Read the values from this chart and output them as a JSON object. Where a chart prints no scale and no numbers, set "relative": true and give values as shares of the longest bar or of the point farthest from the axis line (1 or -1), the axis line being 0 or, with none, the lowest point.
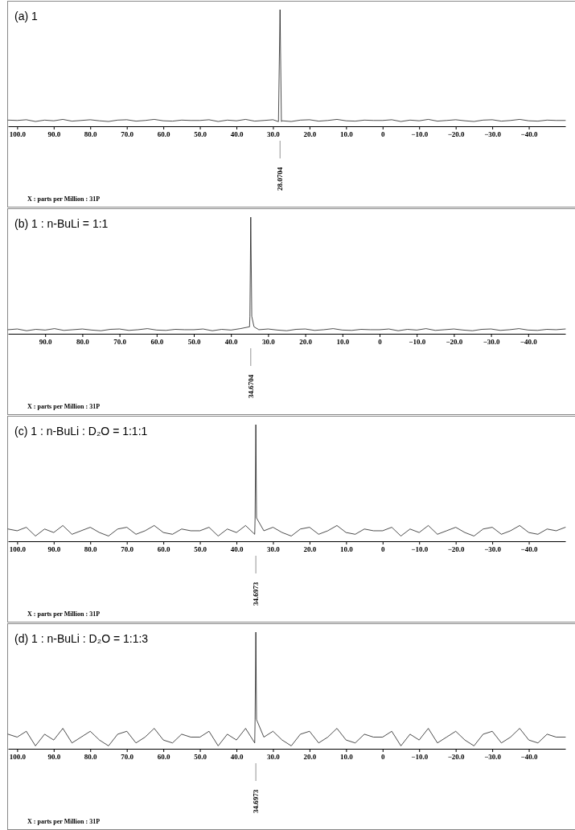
{
  "chart_data": [
    {
      "type": "line",
      "title": "(a) 1",
      "xlabel": "X : parts per Million : 31P",
      "relative": true,
      "xlim": [
        102.5,
        -50
      ],
      "xticks": [
        {
          "value": 100,
          "label": "100.0"
        },
        {
          "value": 90,
          "label": "90.0"
        },
        {
          "value": 80,
          "label": "80.0"
        },
        {
          "value": 70,
          "label": "70.0"
        },
        {
          "value": 60,
          "label": "60.0"
        },
        {
          "value": 50,
          "label": "50.0"
        },
        {
          "value": 40,
          "label": "40.0"
        },
        {
          "value": 30,
          "label": "30.0"
        },
        {
          "value": 20,
          "label": "20.0"
        },
        {
          "value": 10,
          "label": "10.0"
        },
        {
          "value": 0,
          "label": "0"
        },
        {
          "value": -10,
          "label": "−10.0"
        },
        {
          "value": -20,
          "label": "−20.0"
        },
        {
          "value": -30,
          "label": "−30.0"
        },
        {
          "value": -40,
          "label": "−40.0"
        }
      ],
      "annotations": [
        {
          "text": "28.0704",
          "x": 28.0704
        }
      ],
      "series": [
        {
          "color": "#000000",
          "x": [
            102.5,
            100,
            97.5,
            95,
            92.5,
            90,
            87.5,
            85,
            82.5,
            80,
            77.5,
            75,
            72.5,
            70,
            67.5,
            65,
            62.5,
            60,
            57.5,
            55,
            52.5,
            50,
            47.5,
            45,
            42.5,
            40,
            37.5,
            35,
            32.5,
            30,
            28.5,
            28.0704,
            27.7,
            27.5,
            25,
            22.5,
            20,
            17.5,
            15,
            12.5,
            10,
            7.5,
            5,
            2.5,
            0,
            -2.5,
            -5,
            -7.5,
            -10,
            -12.5,
            -15,
            -17.5,
            -20,
            -22.5,
            -25,
            -27.5,
            -30,
            -32.5,
            -35,
            -37.5,
            -40,
            -42.5,
            -45,
            -47.5,
            -50
          ],
          "values": [
            0.053,
            0.05,
            0.056,
            0.041,
            0.053,
            0.047,
            0.059,
            0.044,
            0.05,
            0.056,
            0.047,
            0.041,
            0.053,
            0.056,
            0.044,
            0.05,
            0.059,
            0.047,
            0.044,
            0.053,
            0.05,
            0.05,
            0.056,
            0.041,
            0.053,
            0.047,
            0.059,
            0.044,
            0.05,
            0.056,
            0.04,
            1,
            0.04,
            0.047,
            0.041,
            0.053,
            0.056,
            0.044,
            0.05,
            0.059,
            0.047,
            0.044,
            0.053,
            0.05,
            0.05,
            0.056,
            0.041,
            0.053,
            0.047,
            0.059,
            0.044,
            0.05,
            0.056,
            0.047,
            0.041,
            0.053,
            0.056,
            0.044,
            0.05,
            0.059,
            0.047,
            0.044,
            0.053,
            0.05,
            0.05
          ]
        }
      ]
    },
    {
      "type": "line",
      "title": "(b) 1 : n-BuLi = 1:1",
      "xlabel": "X : parts per Million : 31P",
      "relative": true,
      "xlim": [
        100,
        -50
      ],
      "xticks": [
        {
          "value": 90,
          "label": "90.0"
        },
        {
          "value": 80,
          "label": "80.0"
        },
        {
          "value": 70,
          "label": "70.0"
        },
        {
          "value": 60,
          "label": "60.0"
        },
        {
          "value": 50,
          "label": "50.0"
        },
        {
          "value": 40,
          "label": "40.0"
        },
        {
          "value": 30,
          "label": "30.0"
        },
        {
          "value": 20,
          "label": "20.0"
        },
        {
          "value": 10,
          "label": "10.0"
        },
        {
          "value": 0,
          "label": "0"
        },
        {
          "value": -10,
          "label": "−10.0"
        },
        {
          "value": -20,
          "label": "−20.0"
        },
        {
          "value": -30,
          "label": "−30.0"
        },
        {
          "value": -40,
          "label": "−40.0"
        }
      ],
      "annotations": [
        {
          "text": "34.6704",
          "x": 34.6704
        }
      ],
      "series": [
        {
          "color": "#000000",
          "x": [
            100,
            97.5,
            95,
            92.5,
            90,
            87.5,
            85,
            82.5,
            80,
            77.5,
            75,
            72.5,
            70,
            67.5,
            65,
            62.5,
            60,
            57.5,
            55,
            52.5,
            50,
            47.5,
            45,
            42.5,
            40,
            37.5,
            35,
            34.9,
            34.6704,
            34.4,
            33.8,
            32.5,
            30,
            27.5,
            25,
            22.5,
            20,
            17.5,
            15,
            12.5,
            10,
            7.5,
            5,
            2.5,
            0,
            -2.5,
            -5,
            -7.5,
            -10,
            -12.5,
            -15,
            -17.5,
            -20,
            -22.5,
            -25,
            -27.5,
            -30,
            -32.5,
            -35,
            -37.5,
            -40,
            -42.5,
            -45,
            -47.5,
            -50
          ],
          "values": [
            0.035,
            0.041,
            0.026,
            0.038,
            0.032,
            0.044,
            0.029,
            0.035,
            0.041,
            0.032,
            0.026,
            0.038,
            0.041,
            0.029,
            0.035,
            0.044,
            0.032,
            0.029,
            0.038,
            0.035,
            0.035,
            0.041,
            0.026,
            0.038,
            0.032,
            0.044,
            0.06,
            0.15,
            1,
            0.15,
            0.06,
            0.035,
            0.041,
            0.032,
            0.026,
            0.038,
            0.041,
            0.029,
            0.035,
            0.044,
            0.032,
            0.029,
            0.038,
            0.035,
            0.035,
            0.041,
            0.026,
            0.038,
            0.032,
            0.044,
            0.029,
            0.035,
            0.041,
            0.032,
            0.026,
            0.038,
            0.041,
            0.029,
            0.035,
            0.044,
            0.032,
            0.029,
            0.038,
            0.035,
            0.041
          ]
        }
      ]
    },
    {
      "type": "line",
      "title": "(c) 1 : n-BuLi : D₂O = 1:1:1",
      "xlabel": "X : parts per Million : 31P",
      "relative": true,
      "xlim": [
        102.5,
        -50
      ],
      "xticks": [
        {
          "value": 100,
          "label": "100.0"
        },
        {
          "value": 90,
          "label": "90.0"
        },
        {
          "value": 80,
          "label": "80.0"
        },
        {
          "value": 70,
          "label": "70.0"
        },
        {
          "value": 60,
          "label": "60.0"
        },
        {
          "value": 50,
          "label": "50.0"
        },
        {
          "value": 40,
          "label": "40.0"
        },
        {
          "value": 30,
          "label": "30.0"
        },
        {
          "value": 20,
          "label": "20.0"
        },
        {
          "value": 10,
          "label": "10.0"
        },
        {
          "value": 0,
          "label": "0"
        },
        {
          "value": -10,
          "label": "−10.0"
        },
        {
          "value": -20,
          "label": "−20.0"
        },
        {
          "value": -30,
          "label": "−30.0"
        },
        {
          "value": -40,
          "label": "−40.0"
        }
      ],
      "annotations": [
        {
          "text": "34.6973",
          "x": 34.6973
        }
      ],
      "series": [
        {
          "color": "#000000",
          "x": [
            102.5,
            100,
            97.5,
            95,
            92.5,
            90,
            87.5,
            85,
            82.5,
            80,
            77.5,
            75,
            72.5,
            70,
            67.5,
            65,
            62.5,
            60,
            57.5,
            55,
            52.5,
            50,
            47.5,
            45,
            42.5,
            40,
            37.5,
            35,
            34.9,
            34.6973,
            34.5,
            32.5,
            30,
            27.5,
            25,
            22.5,
            20,
            17.5,
            15,
            12.5,
            10,
            7.5,
            5,
            2.5,
            0,
            -2.5,
            -5,
            -7.5,
            -10,
            -12.5,
            -15,
            -17.5,
            -20,
            -22.5,
            -25,
            -27.5,
            -30,
            -32.5,
            -35,
            -37.5,
            -40,
            -42.5,
            -45,
            -47.5,
            -50
          ],
          "values": [
            0.105,
            0.09,
            0.12,
            0.045,
            0.105,
            0.075,
            0.135,
            0.06,
            0.09,
            0.12,
            0.075,
            0.045,
            0.105,
            0.12,
            0.06,
            0.09,
            0.135,
            0.075,
            0.06,
            0.105,
            0.09,
            0.09,
            0.12,
            0.045,
            0.105,
            0.075,
            0.135,
            0.06,
            0.2,
            1,
            0.2,
            0.09,
            0.12,
            0.075,
            0.045,
            0.105,
            0.12,
            0.06,
            0.09,
            0.135,
            0.075,
            0.06,
            0.105,
            0.09,
            0.09,
            0.12,
            0.045,
            0.105,
            0.075,
            0.135,
            0.06,
            0.09,
            0.12,
            0.075,
            0.045,
            0.105,
            0.12,
            0.06,
            0.09,
            0.135,
            0.075,
            0.06,
            0.105,
            0.09,
            0.12
          ]
        }
      ]
    },
    {
      "type": "line",
      "title": "(d) 1 : n-BuLi : D₂O = 1:1:3",
      "xlabel": "X : parts per Million : 31P",
      "relative": true,
      "xlim": [
        102.5,
        -50
      ],
      "xticks": [
        {
          "value": 100,
          "label": "100.0"
        },
        {
          "value": 90,
          "label": "90.0"
        },
        {
          "value": 80,
          "label": "80.0"
        },
        {
          "value": 70,
          "label": "70.0"
        },
        {
          "value": 60,
          "label": "60.0"
        },
        {
          "value": 50,
          "label": "50.0"
        },
        {
          "value": 40,
          "label": "40.0"
        },
        {
          "value": 30,
          "label": "30.0"
        },
        {
          "value": 20,
          "label": "20.0"
        },
        {
          "value": 10,
          "label": "10.0"
        },
        {
          "value": 0,
          "label": "0"
        },
        {
          "value": -10,
          "label": "−10.0"
        },
        {
          "value": -20,
          "label": "−20.0"
        },
        {
          "value": -30,
          "label": "−30.0"
        },
        {
          "value": -40,
          "label": "−40.0"
        }
      ],
      "annotations": [
        {
          "text": "34.6973",
          "x": 34.6973
        }
      ],
      "series": [
        {
          "color": "#000000",
          "x": [
            102.5,
            100,
            97.5,
            95,
            92.5,
            90,
            87.5,
            85,
            82.5,
            80,
            77.5,
            75,
            72.5,
            70,
            67.5,
            65,
            62.5,
            60,
            57.5,
            55,
            52.5,
            50,
            47.5,
            45,
            42.5,
            40,
            37.5,
            35,
            34.9,
            34.6973,
            34.5,
            32.5,
            30,
            27.5,
            25,
            22.5,
            20,
            17.5,
            15,
            12.5,
            10,
            7.5,
            5,
            2.5,
            0,
            -2.5,
            -5,
            -7.5,
            -10,
            -12.5,
            -15,
            -17.5,
            -20,
            -22.5,
            -25,
            -27.5,
            -30,
            -32.5,
            -35,
            -37.5,
            -40,
            -42.5,
            -45,
            -47.5,
            -50
          ],
          "values": [
            0.125,
            0.1,
            0.15,
            0.025,
            0.125,
            0.075,
            0.175,
            0.05,
            0.1,
            0.15,
            0.075,
            0.025,
            0.125,
            0.15,
            0.05,
            0.1,
            0.175,
            0.075,
            0.05,
            0.125,
            0.1,
            0.1,
            0.15,
            0.025,
            0.125,
            0.075,
            0.175,
            0.05,
            0.25,
            1,
            0.25,
            0.1,
            0.15,
            0.075,
            0.025,
            0.125,
            0.15,
            0.05,
            0.1,
            0.175,
            0.075,
            0.05,
            0.125,
            0.1,
            0.1,
            0.15,
            0.025,
            0.125,
            0.075,
            0.175,
            0.05,
            0.1,
            0.15,
            0.075,
            0.025,
            0.125,
            0.15,
            0.05,
            0.1,
            0.175,
            0.075,
            0.05,
            0.125,
            0.1,
            0.1
          ]
        }
      ]
    }
  ]
}
